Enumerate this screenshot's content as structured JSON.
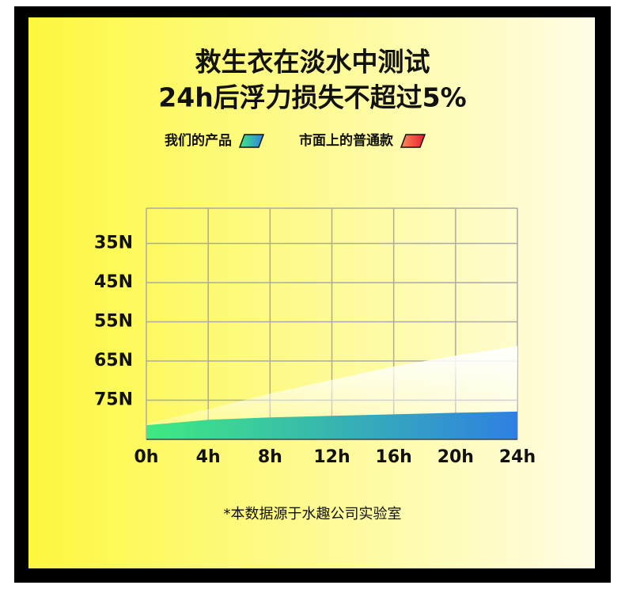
{
  "chart_data": {
    "type": "area",
    "title": "救生衣在淡水中测试",
    "subtitle": "24h后浮力损失不超过5%",
    "categories": [
      "0h",
      "4h",
      "8h",
      "12h",
      "16h",
      "20h",
      "24h"
    ],
    "series": [
      {
        "name": "我们的产品",
        "colors": [
          "#3fea80",
          "#2f80e2"
        ],
        "values": [
          81.4,
          80,
          79.4,
          79,
          78.6,
          78.2,
          77.9
        ]
      },
      {
        "name": "市面上的普通款",
        "colors": [
          "#ff8a5c",
          "#e81e2c"
        ],
        "values": [
          81,
          77.3,
          73.3,
          69.8,
          66.4,
          63.6,
          61.2
        ]
      }
    ],
    "ylim": [
      85,
      26
    ],
    "yticks": [
      {
        "value": 35,
        "label": "35N"
      },
      {
        "value": 45,
        "label": "45N"
      },
      {
        "value": 55,
        "label": "55N"
      },
      {
        "value": 65,
        "label": "65N"
      },
      {
        "value": 75,
        "label": "75N"
      }
    ],
    "grid": true,
    "note": "*本数据源于水趣公司实验室"
  }
}
